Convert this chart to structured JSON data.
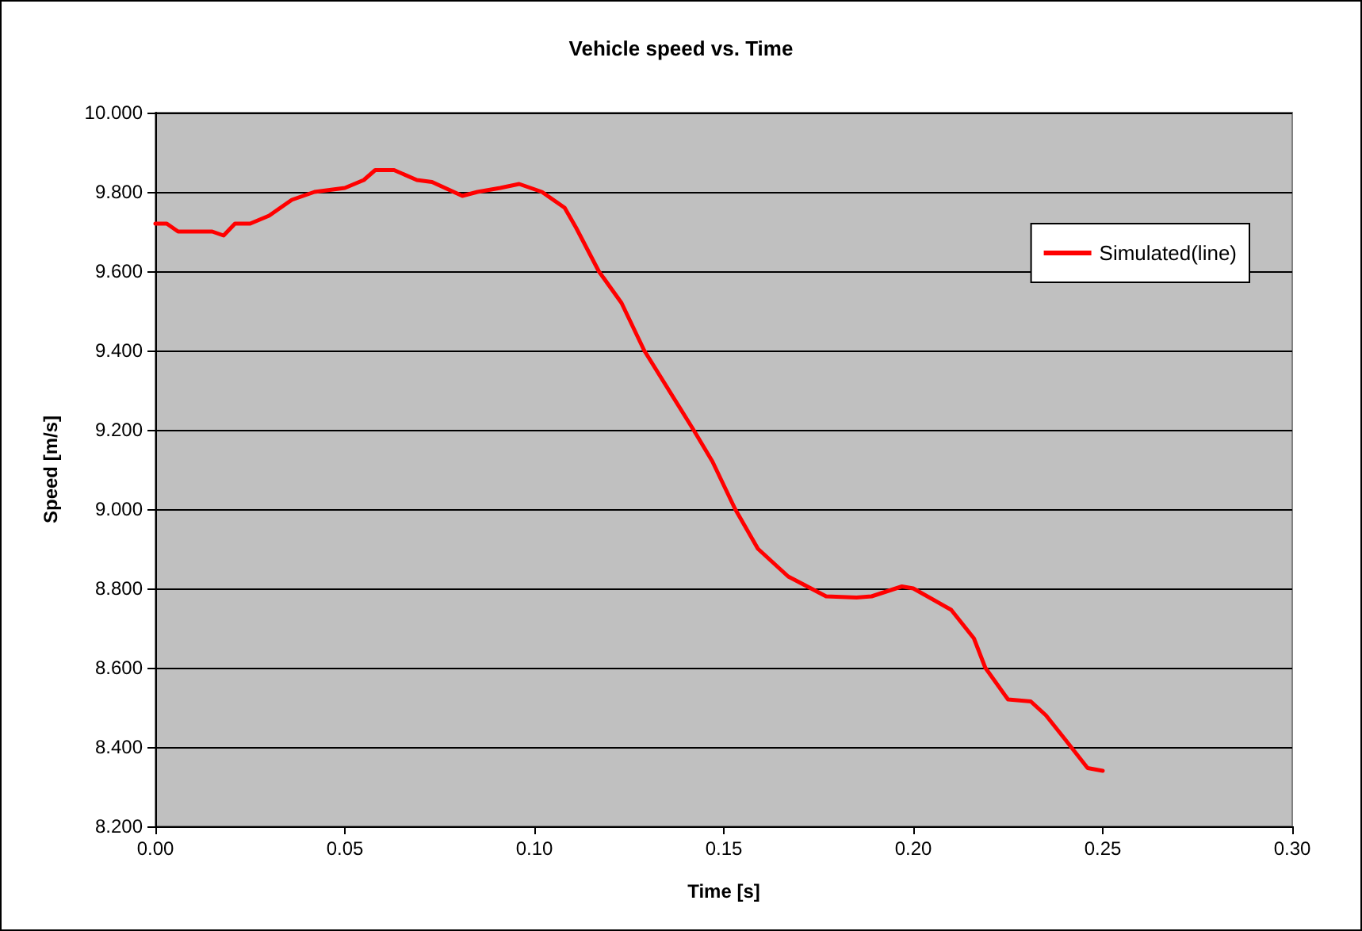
{
  "chart_data": {
    "type": "line",
    "title": "Vehicle speed vs. Time",
    "xlabel": "Time [s]",
    "ylabel": "Speed [m/s]",
    "xlim": [
      0,
      0.3
    ],
    "xticks": [
      {
        "value": 0,
        "label": "0.00"
      },
      {
        "value": 0.05,
        "label": "0.05"
      },
      {
        "value": 0.1,
        "label": "0.10"
      },
      {
        "value": 0.15,
        "label": "0.15"
      },
      {
        "value": 0.2,
        "label": "0.20"
      },
      {
        "value": 0.25,
        "label": "0.25"
      },
      {
        "value": 0.3,
        "label": "0.30"
      }
    ],
    "ylim": [
      8.2,
      10
    ],
    "yticks": [
      {
        "value": 8.2,
        "label": "8.200"
      },
      {
        "value": 8.4,
        "label": "8.400"
      },
      {
        "value": 8.6,
        "label": "8.600"
      },
      {
        "value": 8.8,
        "label": "8.800"
      },
      {
        "value": 9,
        "label": "9.000"
      },
      {
        "value": 9.2,
        "label": "9.200"
      },
      {
        "value": 9.4,
        "label": "9.400"
      },
      {
        "value": 9.6,
        "label": "9.600"
      },
      {
        "value": 9.8,
        "label": "9.800"
      },
      {
        "value": 10,
        "label": "10.000"
      }
    ],
    "grid": "y",
    "legend": "right",
    "marker": "none",
    "line_style": "solid",
    "series": [
      {
        "name": "Simulated(line)",
        "color": "#ff0000",
        "x": [
          0,
          0.003,
          0.006,
          0.015,
          0.018,
          0.021,
          0.025,
          0.03,
          0.036,
          0.042,
          0.05,
          0.055,
          0.058,
          0.063,
          0.069,
          0.073,
          0.081,
          0.085,
          0.091,
          0.096,
          0.102,
          0.108,
          0.111,
          0.117,
          0.123,
          0.129,
          0.142,
          0.147,
          0.153,
          0.159,
          0.167,
          0.177,
          0.185,
          0.189,
          0.197,
          0.2,
          0.21,
          0.216,
          0.219,
          0.225,
          0.231,
          0.235,
          0.24,
          0.246,
          0.25
        ],
        "values": [
          9.72,
          9.72,
          9.7,
          9.7,
          9.69,
          9.72,
          9.72,
          9.74,
          9.78,
          9.8,
          9.81,
          9.83,
          9.855,
          9.855,
          9.83,
          9.825,
          9.79,
          9.8,
          9.81,
          9.82,
          9.8,
          9.76,
          9.71,
          9.6,
          9.52,
          9.4,
          9.2,
          9.12,
          9.0,
          8.9,
          8.83,
          8.78,
          8.777,
          8.78,
          8.805,
          8.8,
          8.746,
          8.674,
          8.6,
          8.52,
          8.515,
          8.48,
          8.42,
          8.347,
          8.34
        ]
      }
    ]
  }
}
